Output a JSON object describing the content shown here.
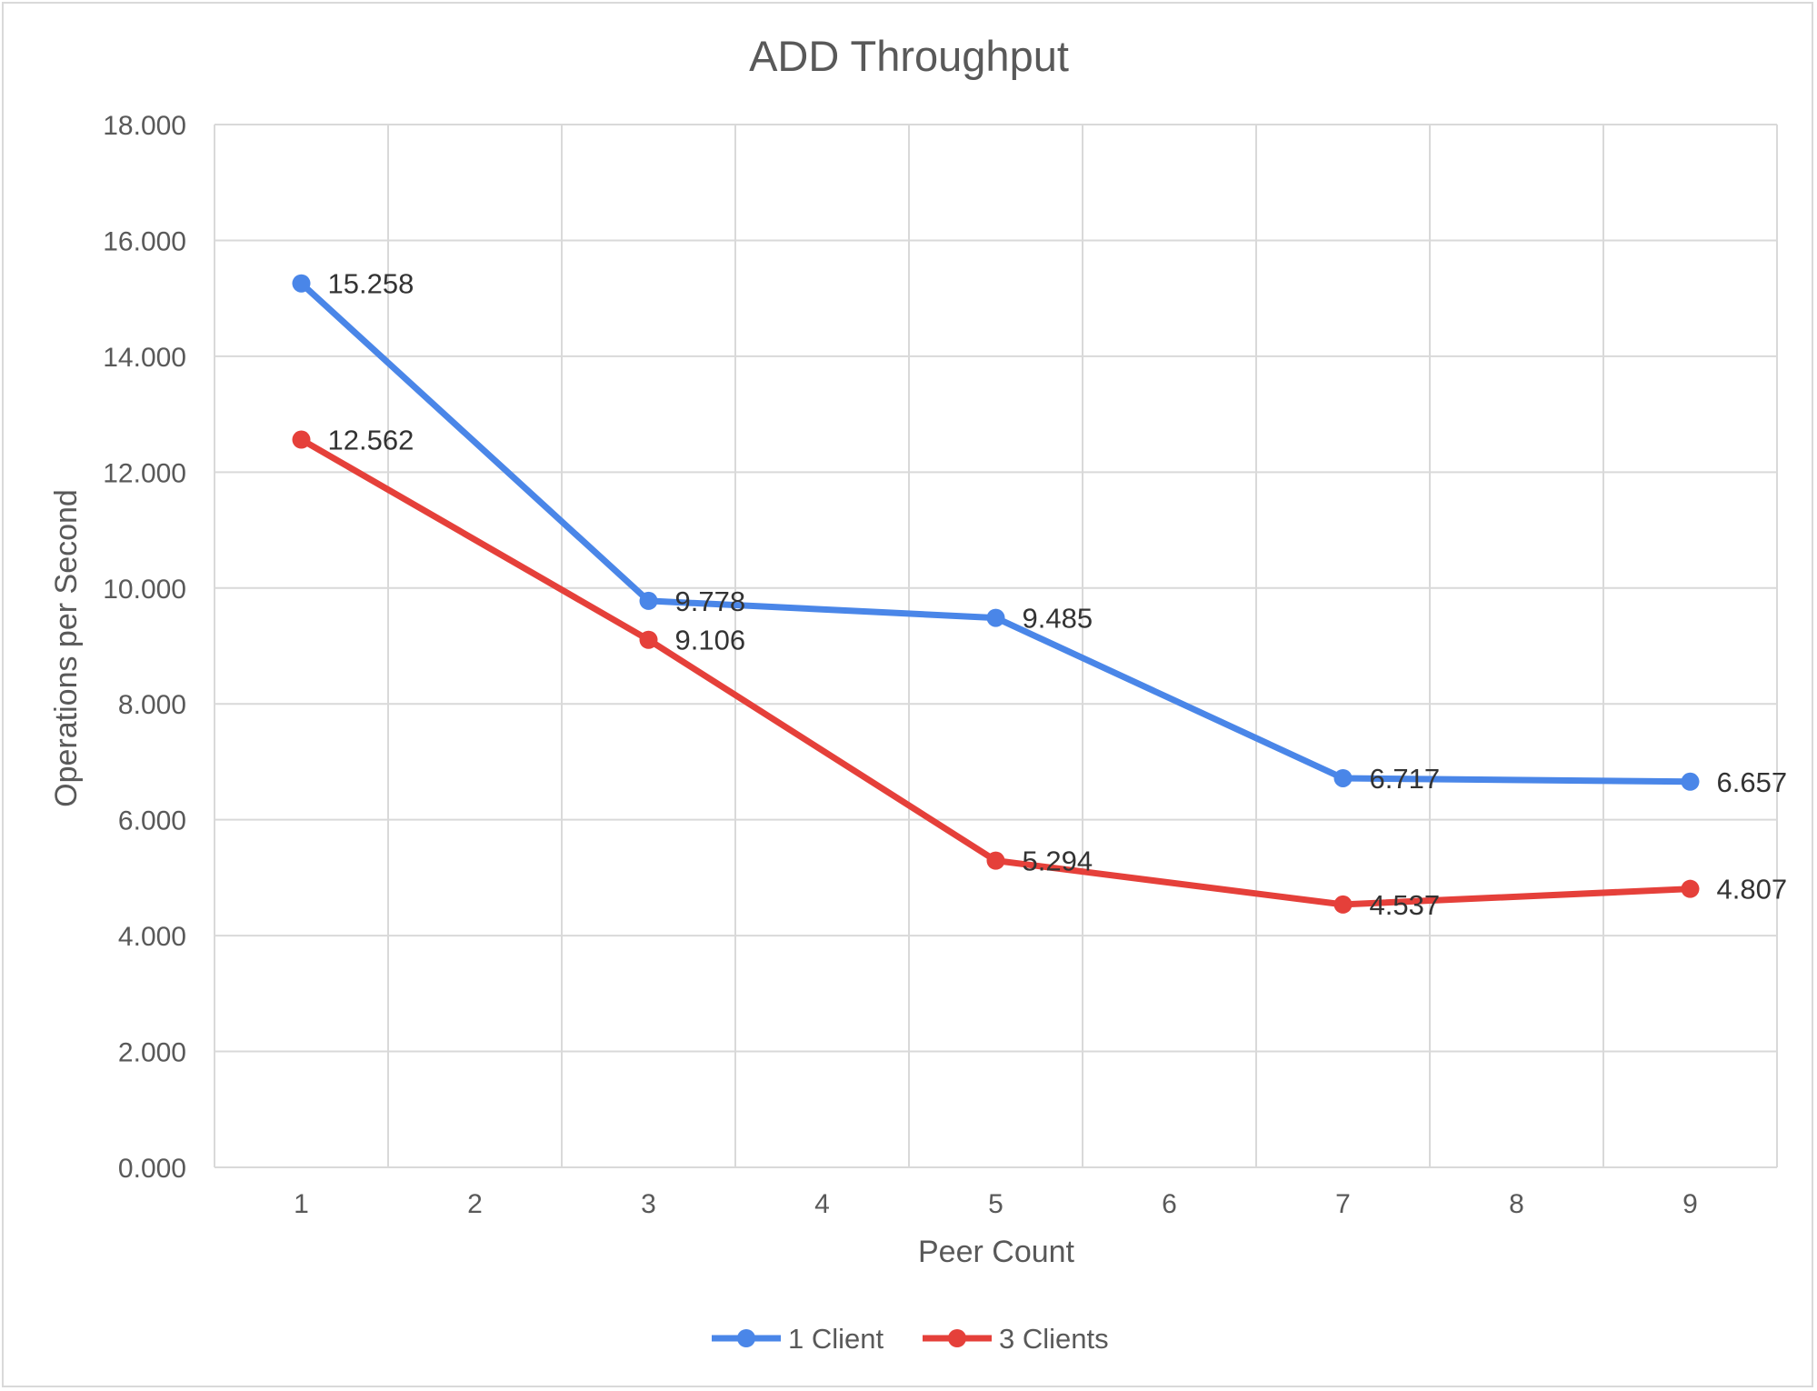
{
  "chart_data": {
    "type": "line",
    "title": "ADD Throughput",
    "xlabel": "Peer Count",
    "ylabel": "Operations per Second",
    "categories": [
      "1",
      "2",
      "3",
      "4",
      "5",
      "6",
      "7",
      "8",
      "9"
    ],
    "x": [
      1,
      3,
      5,
      7,
      9
    ],
    "ylim": [
      0,
      18
    ],
    "yticks": [
      "0.000",
      "2.000",
      "4.000",
      "6.000",
      "8.000",
      "10.000",
      "12.000",
      "14.000",
      "16.000",
      "18.000"
    ],
    "grid": true,
    "legend_position": "bottom",
    "series": [
      {
        "name": "1 Client",
        "color": "#4a86e8",
        "values": [
          15.258,
          9.778,
          9.485,
          6.717,
          6.657
        ],
        "labels": [
          "15.258",
          "9.778",
          "9.485",
          "6.717",
          "6.657"
        ]
      },
      {
        "name": "3 Clients",
        "color": "#e5403a",
        "values": [
          12.562,
          9.106,
          5.294,
          4.537,
          4.807
        ],
        "labels": [
          "12.562",
          "9.106",
          "5.294",
          "4.537",
          "4.807"
        ]
      }
    ]
  }
}
